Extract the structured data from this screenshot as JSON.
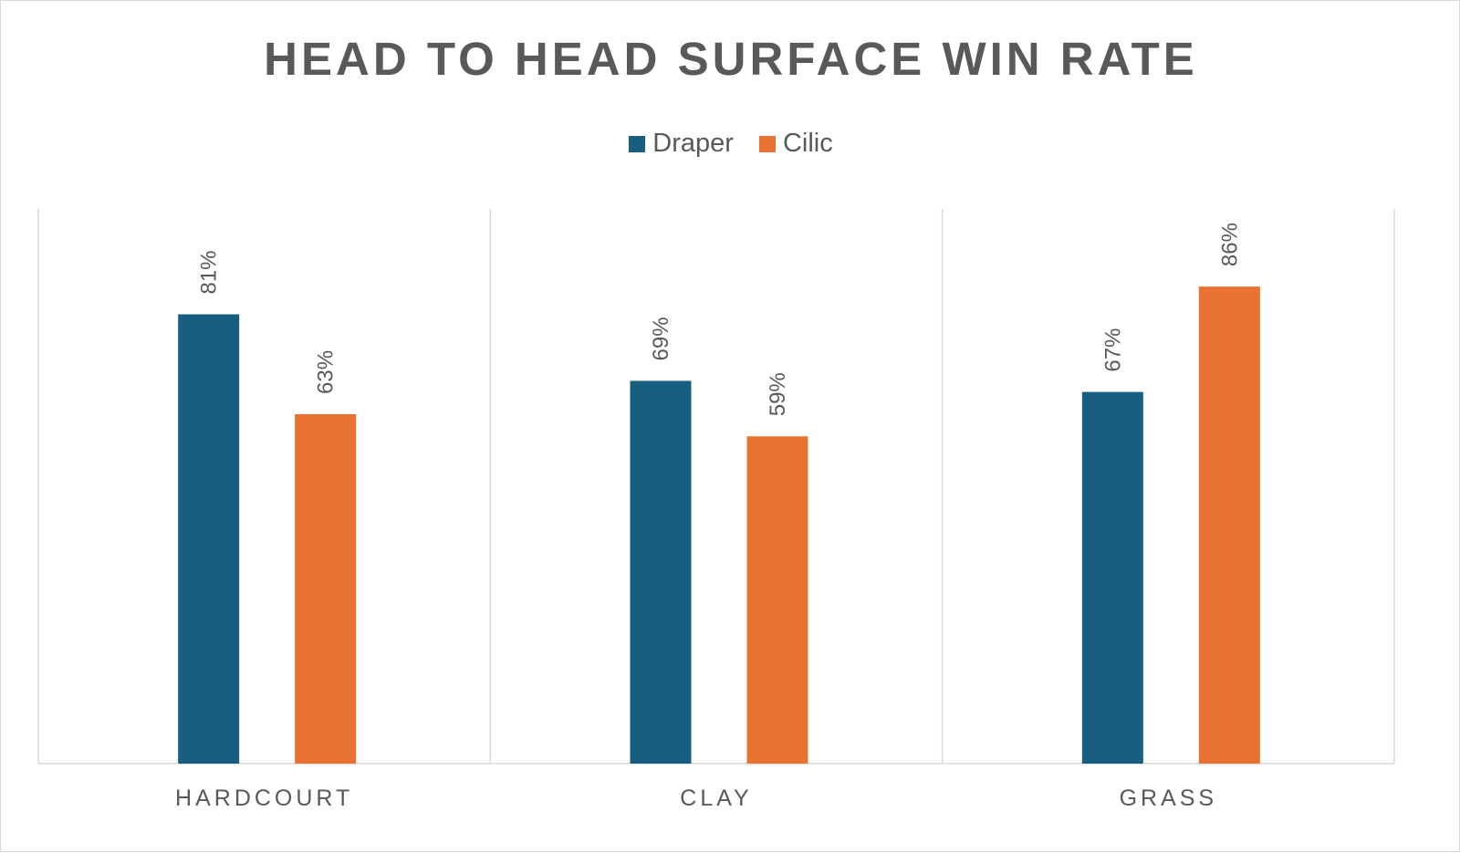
{
  "chart_data": {
    "type": "bar",
    "title": "HEAD TO HEAD SURFACE WIN RATE",
    "categories": [
      "HARDCOURT",
      "CLAY",
      "GRASS"
    ],
    "series": [
      {
        "name": "Draper",
        "color": "#175e80",
        "values": [
          81,
          69,
          67
        ],
        "labels": [
          "81%",
          "69%",
          "67%"
        ]
      },
      {
        "name": "Cilic",
        "color": "#e97132",
        "values": [
          63,
          59,
          86
        ],
        "labels": [
          "63%",
          "59%",
          "86%"
        ]
      }
    ],
    "ylim": [
      0,
      100
    ],
    "grid": true,
    "legend_position": "top",
    "data_labels": true,
    "data_label_orientation": "rotated"
  }
}
